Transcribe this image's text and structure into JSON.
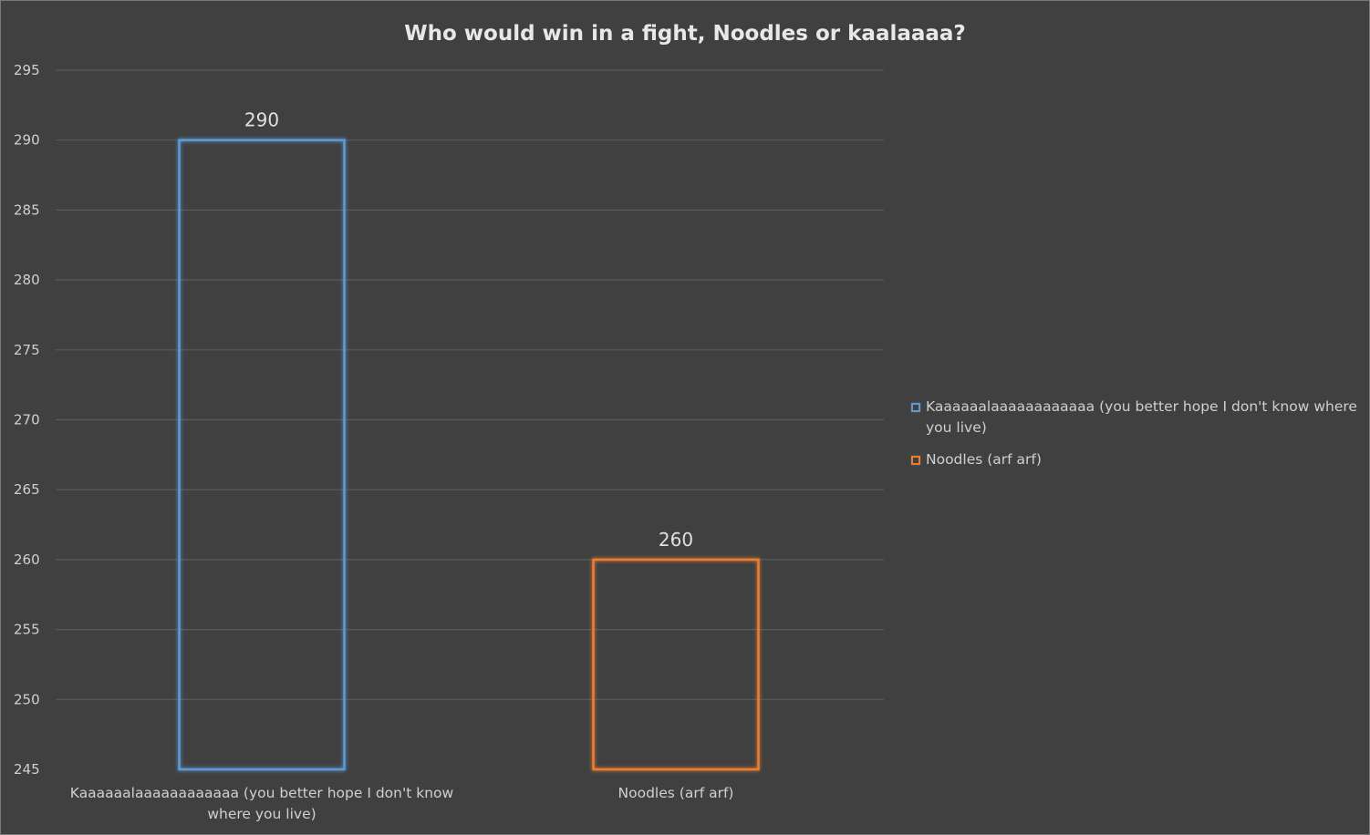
{
  "chart_data": {
    "type": "bar",
    "title": "Who would win in a fight, Noodles or kaalaaaa?",
    "xlabel": "",
    "ylabel": "",
    "categories": [
      "Kaaaaaalaaaaaaaaaaaa (you better hope I don't know where you live)",
      "Noodles (arf arf)"
    ],
    "category_label_lines": [
      [
        "Kaaaaaalaaaaaaaaaaaa (you better hope I don't know",
        "where you live)"
      ],
      [
        "Noodles (arf arf)"
      ]
    ],
    "values": [
      290,
      260
    ],
    "data_labels": [
      "290",
      "260"
    ],
    "ylim": [
      245,
      295
    ],
    "yticks": [
      245,
      250,
      255,
      260,
      265,
      270,
      275,
      280,
      285,
      290,
      295
    ],
    "grid": true,
    "bar_style": "outline-glow",
    "colors": [
      "#5b9bd5",
      "#ed7d31"
    ],
    "legend": {
      "placement": "right",
      "entries": [
        {
          "lines": [
            "Kaaaaaalaaaaaaaaaaaa (you better hope I don't know where",
            "you live)"
          ],
          "color": "#5b9bd5"
        },
        {
          "lines": [
            "Noodles (arf arf)"
          ],
          "color": "#ed7d31"
        }
      ]
    }
  },
  "theme": {
    "background": "#404040",
    "gridline": "#5a5a5a",
    "text": "#d0d0d0"
  }
}
